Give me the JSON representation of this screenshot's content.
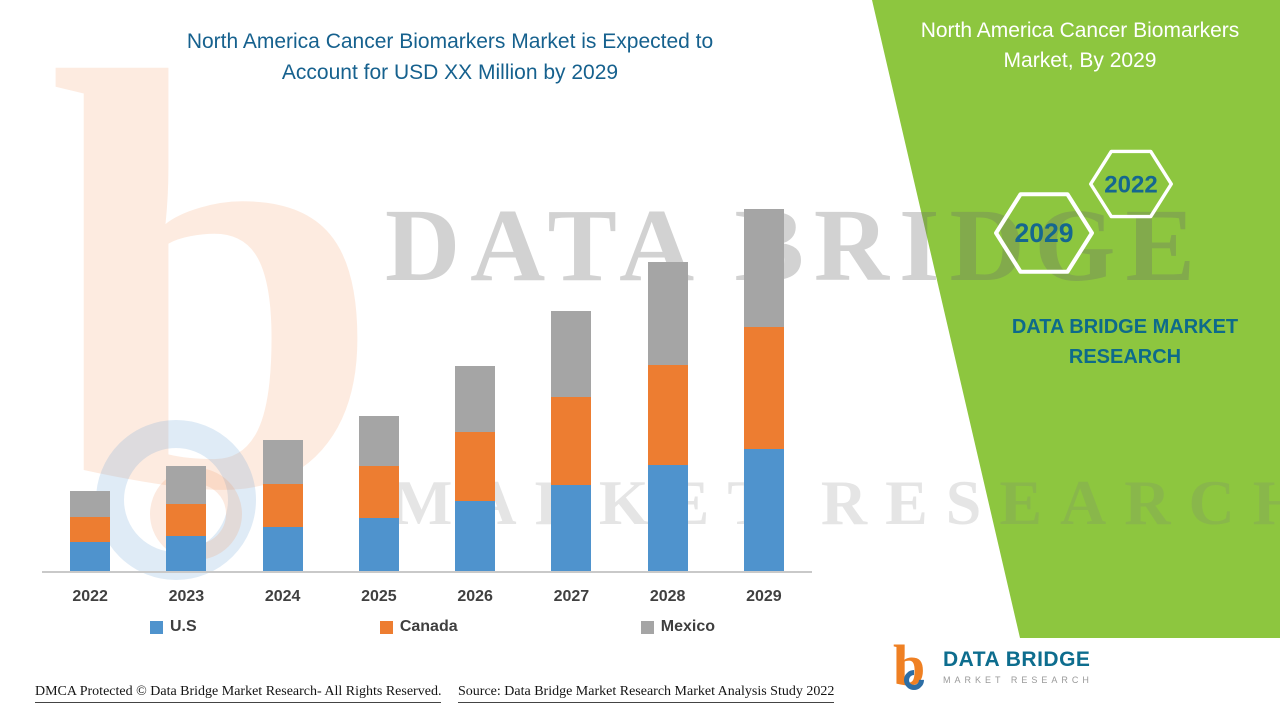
{
  "page": {
    "accent_green": "#8dc63f",
    "brand_teal": "#0d6a8b",
    "title_color": "#16618e"
  },
  "header": {
    "title_line1": "North America Cancer Biomarkers Market is Expected to",
    "title_line2": "Account for USD XX Million by 2029"
  },
  "right_panel": {
    "title": "North America Cancer Biomarkers Market, By 2029",
    "hexagons": [
      {
        "label": "2029"
      },
      {
        "label": "2022"
      }
    ],
    "brand_line1": "DATA BRIDGE MARKET",
    "brand_line2": "RESEARCH"
  },
  "watermark": {
    "letter": "b",
    "line1": "DATA BRIDGE",
    "line2": "MARKET RESEARCH"
  },
  "chart_data": {
    "type": "bar",
    "stacked": true,
    "title": "North America Cancer Biomarkers Market is Expected to Account for USD XX Million by 2029",
    "categories": [
      "2022",
      "2023",
      "2024",
      "2025",
      "2026",
      "2027",
      "2028",
      "2029"
    ],
    "series": [
      {
        "name": "U.S",
        "color": "#4f93cd",
        "values": [
          29,
          35,
          44,
          53,
          70,
          86,
          106,
          122
        ]
      },
      {
        "name": "Canada",
        "color": "#ed7d31",
        "values": [
          25,
          32,
          43,
          52,
          69,
          88,
          100,
          122
        ]
      },
      {
        "name": "Mexico",
        "color": "#a5a5a5",
        "values": [
          26,
          38,
          44,
          50,
          66,
          86,
          103,
          118
        ]
      }
    ],
    "units": "relative height (USD value masked as XX Million)",
    "xlabel": "",
    "ylabel": "",
    "y_axis_shown": false,
    "value_labels_shown": false,
    "grid": false,
    "legend_position": "bottom"
  },
  "footer": {
    "dmca": "DMCA Protected © Data Bridge Market Research- All Rights Reserved.",
    "source": "Source: Data Bridge Market Research Market Analysis Study 2022",
    "logo_text_main": "DATA BRIDGE",
    "logo_text_sub": "MARKET RESEARCH",
    "logo_letter": "b"
  }
}
